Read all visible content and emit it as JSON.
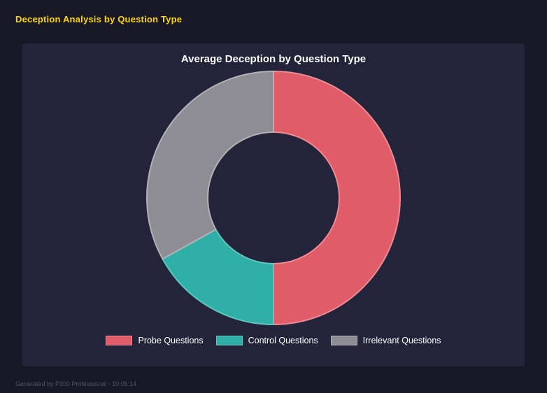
{
  "page": {
    "title": "Deception Analysis by Question Type",
    "footer": "Generated by P300 Professional - 10:05:14",
    "accent_color": "#ffd700",
    "panel_color": "#232339",
    "background_color": "#171725"
  },
  "chart_data": {
    "type": "pie",
    "subtype": "donut",
    "title": "Average Deception by Question Type",
    "categories": [
      "Probe Questions",
      "Control Questions",
      "Irrelevant Questions"
    ],
    "values": [
      50,
      17,
      33
    ],
    "unit": "percent-of-circle",
    "colors": [
      "#e05c68",
      "#2fafa7",
      "#8d8d93"
    ],
    "border_colors": [
      "#ec8b94",
      "#5fc6bf",
      "#b1b1b6"
    ],
    "start_angle": "top",
    "direction": "clockwise",
    "hole_ratio": 0.51,
    "legend_position": "bottom",
    "grid": false
  }
}
